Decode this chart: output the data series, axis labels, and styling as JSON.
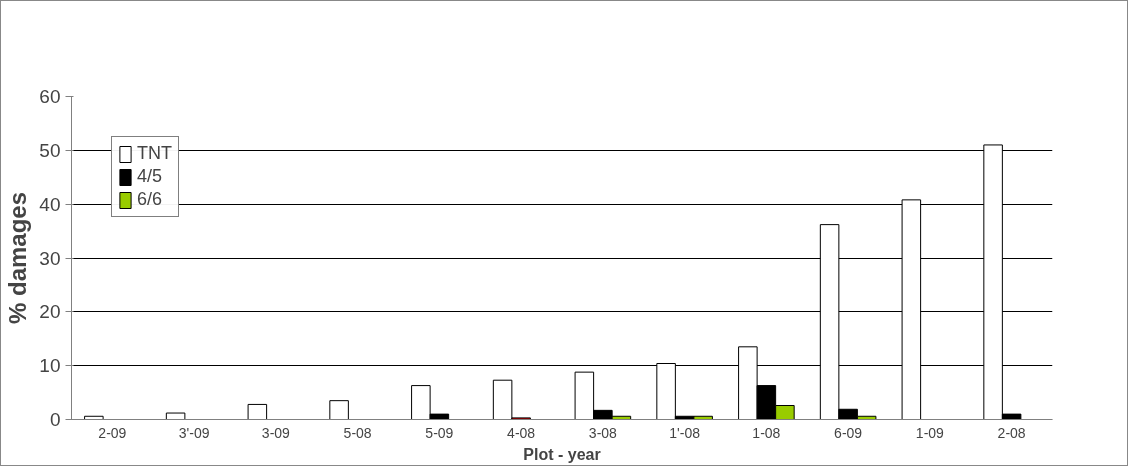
{
  "chart_data": {
    "type": "bar",
    "xlabel": "Plot - year",
    "ylabel": "% damages",
    "categories": [
      "2-09",
      "3'-09",
      "3-09",
      "5-08",
      "5-09",
      "4-08",
      "3-08",
      "1'-08",
      "1-08",
      "6-09",
      "1-09",
      "2-08"
    ],
    "series": [
      {
        "name": "TNT",
        "color": "#ffffff",
        "values": [
          0.6,
          1.2,
          2.8,
          3.5,
          6.3,
          7.3,
          8.8,
          10.4,
          13.5,
          36.2,
          40.8,
          51
        ]
      },
      {
        "name": "4/5",
        "colors": [
          "#000000",
          "#000000",
          "#000000",
          "#000000",
          "#000000",
          "#c00000",
          "#000000",
          "#000000",
          "#000000",
          "#000000",
          "#000000",
          "#000000"
        ],
        "values": [
          null,
          null,
          null,
          null,
          1,
          0.3,
          1.7,
          0.6,
          6.3,
          1.9,
          null,
          1.0
        ]
      },
      {
        "name": "6/6",
        "color": "#99cc00",
        "values": [
          null,
          null,
          null,
          null,
          null,
          null,
          0.6,
          0.6,
          2.6,
          0.6,
          null,
          null
        ]
      }
    ],
    "ylim": [
      0,
      60
    ],
    "yticks": [
      0,
      10,
      20,
      30,
      40,
      50,
      60
    ],
    "grid": "y",
    "legend": "top left"
  }
}
